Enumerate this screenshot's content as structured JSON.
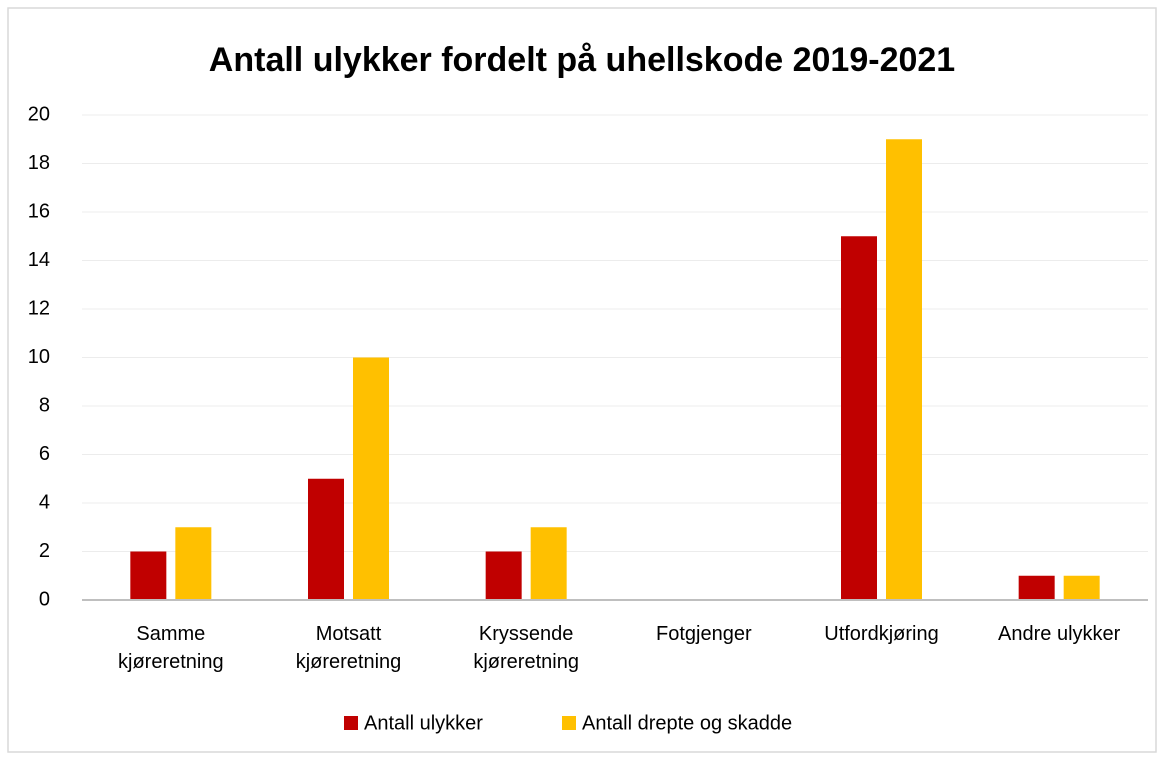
{
  "chart_data": {
    "type": "bar",
    "title": "Antall ulykker fordelt på uhellskode 2019-2021",
    "categories": [
      "Samme kjøreretning",
      "Motsatt kjøreretning",
      "Kryssende kjøreretning",
      "Fotgjenger",
      "Utfordkjøring",
      "Andre ulykker"
    ],
    "series": [
      {
        "name": "Antall ulykker",
        "color": "#c00000",
        "values": [
          2,
          5,
          2,
          0,
          15,
          1
        ]
      },
      {
        "name": "Antall drepte og skadde",
        "color": "#ffc000",
        "values": [
          3,
          10,
          3,
          0,
          19,
          1
        ]
      }
    ],
    "ylim": [
      0,
      20
    ],
    "yticks": [
      0,
      2,
      4,
      6,
      8,
      10,
      12,
      14,
      16,
      18,
      20
    ],
    "grid": true,
    "legend": "bottom"
  }
}
